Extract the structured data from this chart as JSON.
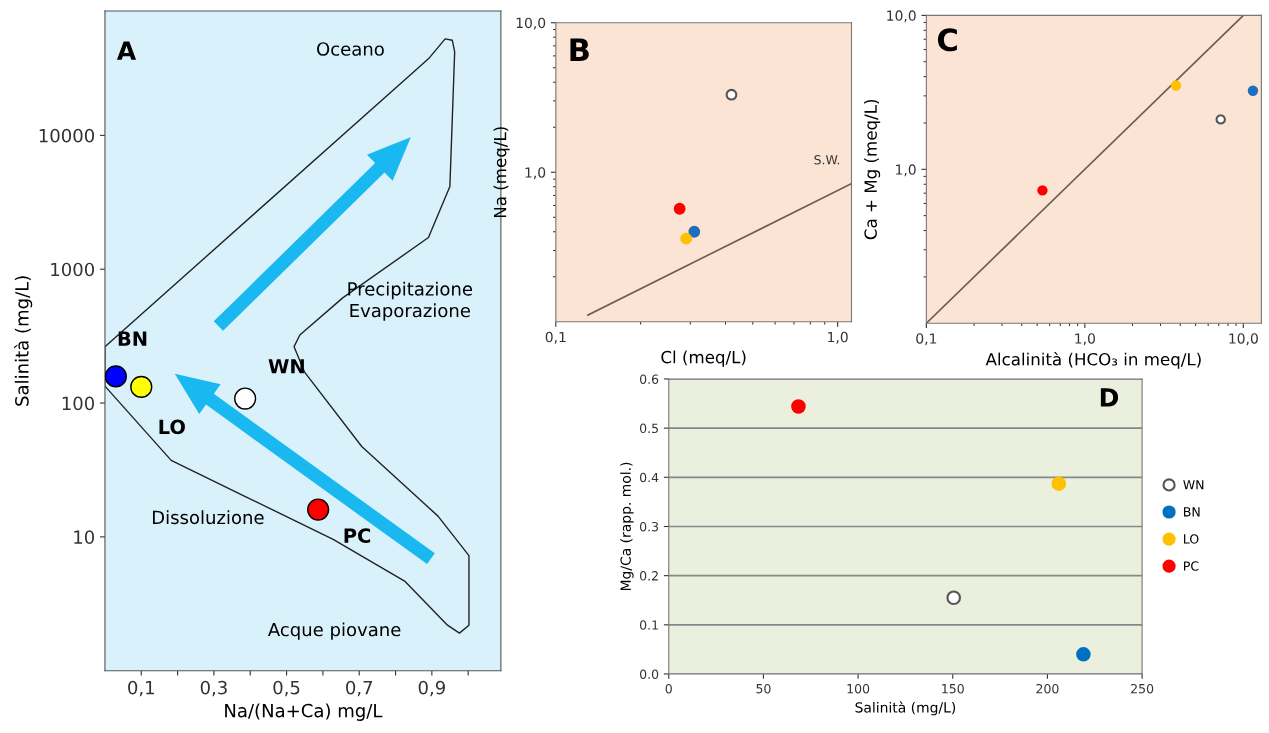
{
  "chart_data": [
    {
      "type": "scatter",
      "xlabel": "Na/(Na+Ca) mg/L",
      "ylabel": "Salinità (mg/L)",
      "log": "y",
      "xlim": [
        0,
        1.09
      ],
      "ylim": [
        1,
        85000
      ],
      "xticks": [
        {
          "value": 0.1,
          "label": "0,1"
        },
        {
          "value": 0.2,
          "label": null
        },
        {
          "value": 0.3,
          "label": "0,3"
        },
        {
          "value": 0.4,
          "label": null
        },
        {
          "value": 0.5,
          "label": "0,5"
        },
        {
          "value": 0.6,
          "label": null
        },
        {
          "value": 0.7,
          "label": "0,7"
        },
        {
          "value": 0.8,
          "label": null
        },
        {
          "value": 0.9,
          "label": "0,9"
        },
        {
          "value": 1.0,
          "label": null
        }
      ],
      "yticks": [
        10,
        100,
        1000,
        10000
      ],
      "grid": false,
      "legend": false,
      "marker": "circle",
      "series": [
        {
          "name": "BN",
          "color": "#0000ff",
          "x": [
            0.03
          ],
          "values": [
            158
          ]
        },
        {
          "name": "LO",
          "color": "#ffff00",
          "x": [
            0.1
          ],
          "values": [
            132
          ]
        },
        {
          "name": "WN",
          "color": "#ffffff",
          "x": [
            0.386
          ],
          "values": [
            108
          ]
        },
        {
          "name": "PC",
          "color": "#ff0000",
          "x": [
            0.587
          ],
          "values": [
            16
          ]
        }
      ],
      "annotations": [
        "A",
        "Oceano",
        "Precipitazione\nEvaporazione",
        "Dissoluzione",
        "Acque piovane"
      ]
    },
    {
      "type": "scatter",
      "xlabel": "Cl (meq/L)",
      "ylabel": "Na (meq/L)",
      "log": "xy",
      "xlim": [
        0.1,
        1.12
      ],
      "ylim": [
        0.1,
        10
      ],
      "xticks": [
        {
          "value": 0.1,
          "label": "0,1"
        },
        {
          "value": 1,
          "label": "1,0"
        }
      ],
      "yticks": [
        {
          "value": 1,
          "label": "1,0"
        },
        {
          "value": 10,
          "label": "10,0"
        }
      ],
      "grid": false,
      "legend": false,
      "marker": "circle",
      "series": [
        {
          "color": "#ffffff",
          "x": [
            0.42
          ],
          "values": [
            3.3
          ]
        },
        {
          "color": "#1f6fc0",
          "x": [
            0.31
          ],
          "values": [
            0.4
          ]
        },
        {
          "color": "#ffc000",
          "x": [
            0.29
          ],
          "values": [
            0.36
          ]
        },
        {
          "color": "#ff0000",
          "x": [
            0.275
          ],
          "values": [
            0.57
          ]
        },
        {
          "type": "line",
          "name": "S.W.",
          "color": "#6b5f55",
          "marker": "none",
          "x": [
            0.13,
            1.12
          ],
          "values": [
            0.111,
            0.84
          ]
        }
      ],
      "annotations": [
        "B"
      ]
    },
    {
      "type": "scatter",
      "xlabel": "Alcalinità (HCO₃ in meq/L)",
      "ylabel": "Ca + Mg (meq/L)",
      "log": "xy",
      "xlim": [
        0.1,
        13
      ],
      "ylim": [
        0.1,
        10
      ],
      "xticks": [
        {
          "value": 0.1,
          "label": "0,1"
        },
        {
          "value": 1,
          "label": "1,0"
        },
        {
          "value": 10,
          "label": "10,0"
        }
      ],
      "yticks": [
        {
          "value": 1,
          "label": "1,0"
        },
        {
          "value": 10,
          "label": "10,0"
        }
      ],
      "grid": false,
      "legend": false,
      "marker": "circle",
      "series": [
        {
          "color": "#ffffff",
          "x": [
            7.2
          ],
          "values": [
            2.11
          ]
        },
        {
          "color": "#1f6fc0",
          "x": [
            11.5
          ],
          "values": [
            3.24
          ]
        },
        {
          "color": "#ffc000",
          "x": [
            3.76
          ],
          "values": [
            3.5
          ]
        },
        {
          "color": "#ff0000",
          "x": [
            0.54
          ],
          "values": [
            0.73
          ]
        },
        {
          "type": "line",
          "color": "#6b5f55",
          "marker": "none",
          "x": [
            0.1,
            10
          ],
          "values": [
            0.1,
            10
          ]
        }
      ],
      "annotations": [
        "C"
      ]
    },
    {
      "type": "scatter",
      "xlabel": "Salinità (mg/L)",
      "ylabel": "Mg/Ca (rapp. mol.)",
      "xlim": [
        0,
        250
      ],
      "ylim": [
        0,
        0.6
      ],
      "xticks": [
        0,
        50,
        100,
        150,
        200,
        250
      ],
      "yticks": [
        {
          "value": 0,
          "label": "0.0"
        },
        0.1,
        0.2,
        0.3,
        0.4,
        0.5,
        0.6
      ],
      "grid": "y",
      "legend": "right",
      "marker": "circle",
      "series": [
        {
          "name": "WN",
          "color": "#ffffff",
          "x": [
            150.5
          ],
          "values": [
            0.155
          ]
        },
        {
          "name": "BN",
          "color": "#0070c0",
          "x": [
            219
          ],
          "values": [
            0.04
          ]
        },
        {
          "name": "LO",
          "color": "#ffc000",
          "x": [
            206
          ],
          "values": [
            0.387
          ]
        },
        {
          "name": "PC",
          "color": "#ff0000",
          "x": [
            68.5
          ],
          "values": [
            0.544
          ]
        }
      ],
      "annotations": [
        "D"
      ]
    }
  ]
}
